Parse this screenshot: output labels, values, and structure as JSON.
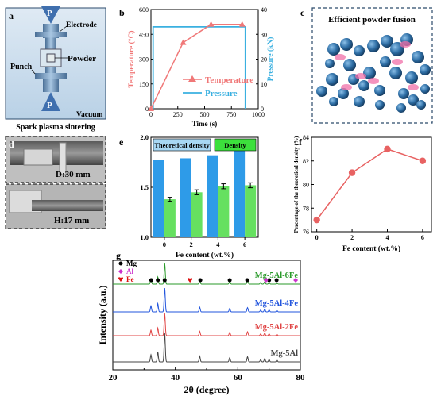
{
  "panels": {
    "a": {
      "letter": "a",
      "labels": {
        "top_p": "P",
        "bottom_p": "P",
        "electrode": "Electrode",
        "powder": "Powder",
        "punch": "Punch",
        "vacuum": "Vacuum"
      },
      "caption": "Spark plasma sintering"
    },
    "b": {
      "letter": "b",
      "caption": ""
    },
    "c": {
      "letter": "c",
      "title": "Efficient powder fusion"
    },
    "d": {
      "letter": "d",
      "diameter_label": "D:30 mm",
      "height_label": "H:17 mm"
    },
    "e": {
      "letter": "e"
    },
    "f": {
      "letter": "f"
    },
    "g": {
      "letter": "g"
    }
  },
  "colors": {
    "temperature": "#f07878",
    "pressure": "#3ab0e0",
    "theoretical_bar": "#2e9be8",
    "density_bar": "#66e060",
    "density_title_bg": "#3ce03c",
    "theoretical_title_bg": "#a8d8f4",
    "fig_f_line": "#e86262",
    "mg": "#000000",
    "al": "#cc33cc",
    "fe": "#dd1111",
    "xrd_6fe": "#2a9a2a",
    "xrd_4fe": "#2255dd",
    "xrd_2fe": "#e04444",
    "xrd_mg5al": "#444444"
  },
  "chart_data": [
    {
      "id": "b",
      "type": "line",
      "xlabel": "Time (s)",
      "ylabel": "Temperature (°C)",
      "y2label": "Pressure (kN)",
      "xlim": [
        0,
        1000
      ],
      "ylim": [
        0,
        600
      ],
      "y2lim": [
        0,
        40
      ],
      "xticks": [
        "0",
        "250",
        "500",
        "750",
        "1000"
      ],
      "yticks": [
        "0",
        "150",
        "300",
        "450",
        "600"
      ],
      "y2ticks": [
        "0",
        "10",
        "20",
        "30",
        "40"
      ],
      "series": [
        {
          "name": "Temperature",
          "axis": "left",
          "marker": "triangle",
          "x": [
            0,
            300,
            560,
            850
          ],
          "y": [
            0,
            400,
            510,
            510
          ]
        },
        {
          "name": "Pressure",
          "axis": "right",
          "marker": "none",
          "x": [
            20,
            20,
            880,
            880
          ],
          "y": [
            0,
            33,
            33,
            0
          ]
        }
      ],
      "legend_position": "center-right"
    },
    {
      "id": "e",
      "type": "bar",
      "xlabel": "Fe content (wt.%)",
      "ylabel": "",
      "categories": [
        "0",
        "2",
        "4",
        "6"
      ],
      "ylim": [
        1.0,
        2.0
      ],
      "yticks": [
        "1.0",
        "1.5",
        "2.0"
      ],
      "series": [
        {
          "name": "Theoretical density",
          "values": [
            1.77,
            1.79,
            1.82,
            1.87
          ]
        },
        {
          "name": "Density",
          "values": [
            1.38,
            1.45,
            1.51,
            1.52
          ],
          "errors": [
            0.02,
            0.025,
            0.025,
            0.025
          ]
        }
      ],
      "legend_position": "top"
    },
    {
      "id": "f",
      "type": "line",
      "xlabel": "Fe content (wt.%)",
      "ylabel": "Percentage of the theoretical density (%)",
      "xlim": [
        -0.3,
        6.5
      ],
      "ylim": [
        76,
        84
      ],
      "xticks": [
        "0",
        "2",
        "4",
        "6"
      ],
      "yticks": [
        "76",
        "78",
        "80",
        "82",
        "84"
      ],
      "series": [
        {
          "name": "",
          "x": [
            0,
            2,
            4,
            6
          ],
          "y": [
            77,
            81,
            83,
            82
          ]
        }
      ]
    },
    {
      "id": "g",
      "type": "line",
      "xlabel": "2θ (degree)",
      "ylabel": "Intensity (a.u.)",
      "xlim": [
        20,
        80
      ],
      "xticks": [
        "20",
        "40",
        "60",
        "80"
      ],
      "legend": [
        {
          "symbol": "circle",
          "label": "Mg"
        },
        {
          "symbol": "diamond",
          "label": "Al"
        },
        {
          "symbol": "heart",
          "label": "Fe"
        }
      ],
      "series": [
        {
          "name": "Mg-5Al-6Fe"
        },
        {
          "name": "Mg-5Al-4Fe"
        },
        {
          "name": "Mg-5Al-2Fe"
        },
        {
          "name": "Mg-5Al"
        }
      ],
      "peaks_mg": [
        32.2,
        34.4,
        36.6,
        47.8,
        57.4,
        63.1,
        67.3,
        68.6,
        70.0,
        72.5
      ],
      "peaks_mg_relative": [
        0.25,
        0.35,
        1.0,
        0.2,
        0.15,
        0.18,
        0.08,
        0.12,
        0.08,
        0.06
      ],
      "markers_mg": [
        32.3,
        34.4,
        36.6,
        48.0,
        57.4,
        63.0,
        70.0,
        72.4
      ],
      "markers_al": [
        69.0,
        78.5
      ],
      "markers_fe": [
        44.7
      ]
    }
  ]
}
